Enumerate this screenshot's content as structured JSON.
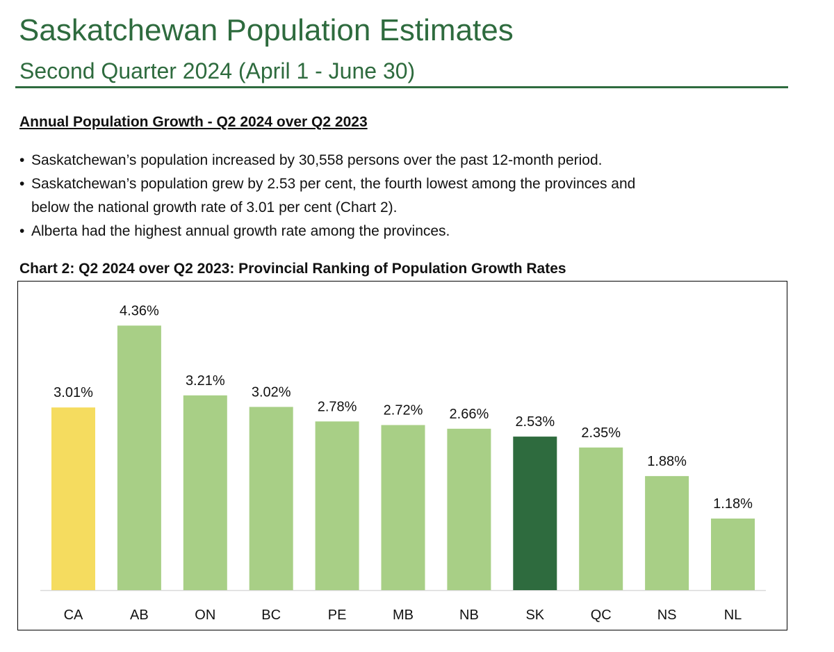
{
  "header": {
    "title": "Saskatchewan Population Estimates",
    "subtitle": "Second Quarter 2024 (April 1 - June 30)"
  },
  "section": {
    "heading": "Annual Population Growth - Q2 2024 over Q2 2023",
    "bullets": [
      "Saskatchewan’s population increased by 30,558 persons over the past 12-month period.",
      "Saskatchewan’s population grew by 2.53 per cent, the fourth lowest among the provinces and",
      "below the national growth rate of 3.01 per cent (Chart 2).",
      "Alberta had the highest annual growth rate among the provinces."
    ]
  },
  "colors": {
    "brand_green": "#2e6b3e",
    "rule_green": "#2e6b3e",
    "bar_default": "#a8cf86",
    "bar_national": "#f5dc5f",
    "bar_highlight": "#2e6b3e",
    "axis_line": "#d9d9d9"
  },
  "chart_data": {
    "type": "bar",
    "title": "Chart 2: Q2 2024 over Q2 2023: Provincial Ranking of Population Growth Rates",
    "xlabel": "",
    "ylabel": "",
    "ylim": [
      0,
      5
    ],
    "grid": false,
    "legend": "none",
    "categories": [
      "CA",
      "AB",
      "ON",
      "BC",
      "PE",
      "MB",
      "NB",
      "SK",
      "QC",
      "NS",
      "NL"
    ],
    "values": [
      3.01,
      4.36,
      3.21,
      3.02,
      2.78,
      2.72,
      2.66,
      2.53,
      2.35,
      1.88,
      1.18
    ],
    "labels": [
      "3.01%",
      "4.36%",
      "3.21%",
      "3.02%",
      "2.78%",
      "2.72%",
      "2.66%",
      "2.53%",
      "2.35%",
      "1.88%",
      "1.18%"
    ],
    "bar_color_roles": [
      "national",
      "default",
      "default",
      "default",
      "default",
      "default",
      "default",
      "highlight",
      "default",
      "default",
      "default"
    ]
  }
}
